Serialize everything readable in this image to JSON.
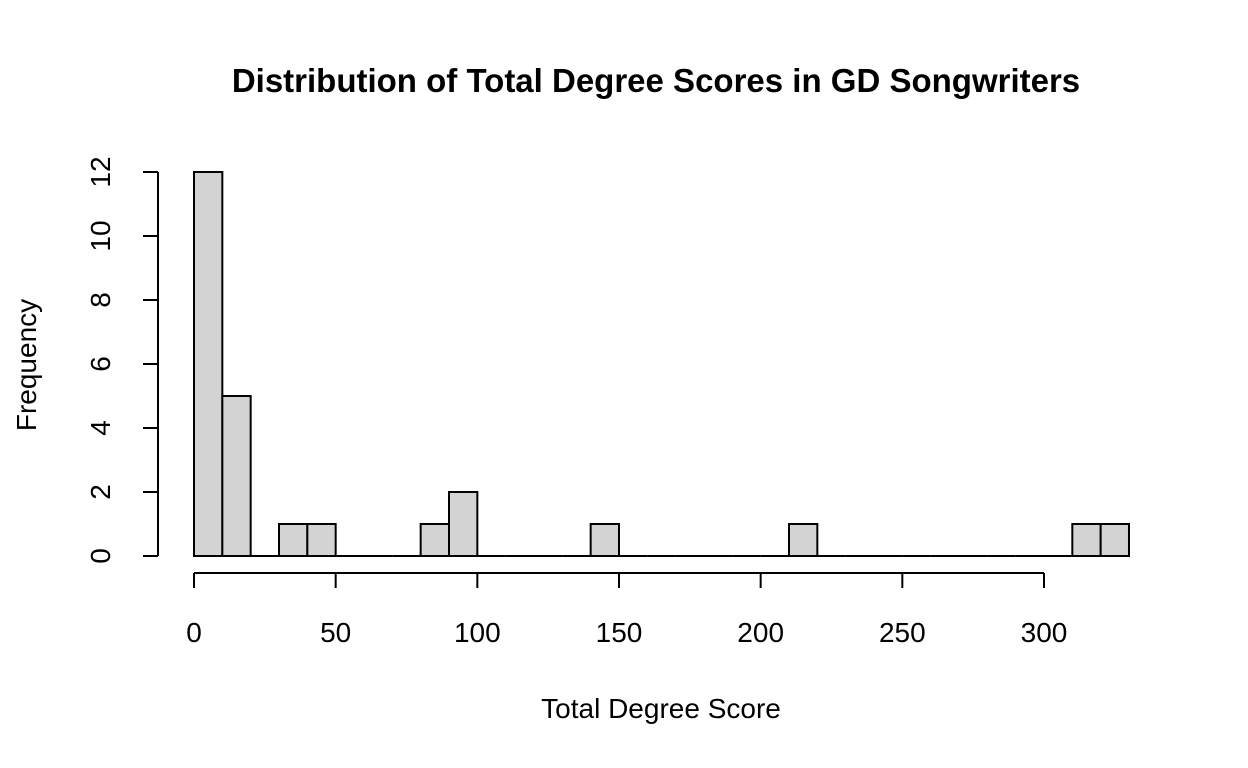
{
  "chart_data": {
    "type": "bar",
    "title": "Distribution of Total Degree Scores in GD Songwriters",
    "xlabel": "Total Degree Score",
    "ylabel": "Frequency",
    "bin_width": 10,
    "bins": [
      {
        "start": 0,
        "end": 10,
        "count": 12
      },
      {
        "start": 10,
        "end": 20,
        "count": 5
      },
      {
        "start": 20,
        "end": 30,
        "count": 0
      },
      {
        "start": 30,
        "end": 40,
        "count": 1
      },
      {
        "start": 40,
        "end": 50,
        "count": 1
      },
      {
        "start": 50,
        "end": 60,
        "count": 0
      },
      {
        "start": 60,
        "end": 70,
        "count": 0
      },
      {
        "start": 70,
        "end": 80,
        "count": 0
      },
      {
        "start": 80,
        "end": 90,
        "count": 1
      },
      {
        "start": 90,
        "end": 100,
        "count": 2
      },
      {
        "start": 100,
        "end": 110,
        "count": 0
      },
      {
        "start": 110,
        "end": 120,
        "count": 0
      },
      {
        "start": 120,
        "end": 130,
        "count": 0
      },
      {
        "start": 130,
        "end": 140,
        "count": 0
      },
      {
        "start": 140,
        "end": 150,
        "count": 1
      },
      {
        "start": 150,
        "end": 160,
        "count": 0
      },
      {
        "start": 160,
        "end": 170,
        "count": 0
      },
      {
        "start": 170,
        "end": 180,
        "count": 0
      },
      {
        "start": 180,
        "end": 190,
        "count": 0
      },
      {
        "start": 190,
        "end": 200,
        "count": 0
      },
      {
        "start": 200,
        "end": 210,
        "count": 0
      },
      {
        "start": 210,
        "end": 220,
        "count": 1
      },
      {
        "start": 220,
        "end": 230,
        "count": 0
      },
      {
        "start": 230,
        "end": 240,
        "count": 0
      },
      {
        "start": 240,
        "end": 250,
        "count": 0
      },
      {
        "start": 250,
        "end": 260,
        "count": 0
      },
      {
        "start": 260,
        "end": 270,
        "count": 0
      },
      {
        "start": 270,
        "end": 280,
        "count": 0
      },
      {
        "start": 280,
        "end": 290,
        "count": 0
      },
      {
        "start": 290,
        "end": 300,
        "count": 0
      },
      {
        "start": 300,
        "end": 310,
        "count": 0
      },
      {
        "start": 310,
        "end": 320,
        "count": 1
      },
      {
        "start": 320,
        "end": 330,
        "count": 1
      }
    ],
    "x_ticks": [
      0,
      50,
      100,
      150,
      200,
      250,
      300
    ],
    "x_tick_labels": [
      "0",
      "50",
      "100",
      "150",
      "200",
      "250",
      "300"
    ],
    "y_ticks": [
      0,
      2,
      4,
      6,
      8,
      10,
      12
    ],
    "y_tick_labels": [
      "0",
      "2",
      "4",
      "6",
      "8",
      "10",
      "12"
    ],
    "xlim": [
      0,
      330
    ],
    "ylim": [
      0,
      12
    ],
    "grid": false,
    "legend": "none",
    "bar_color": "#d3d3d3",
    "stroke_color": "#000000"
  }
}
